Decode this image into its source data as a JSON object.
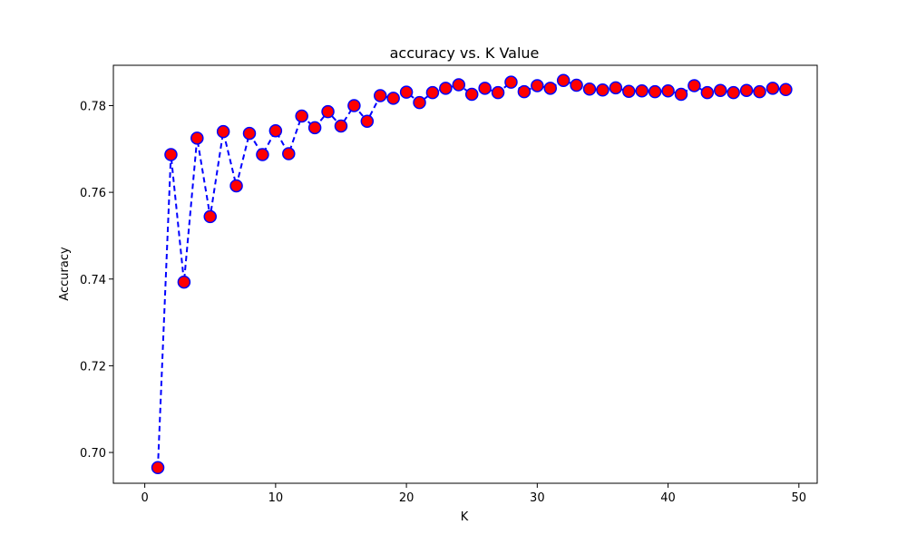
{
  "chart_data": {
    "type": "line",
    "title": "accuracy vs. K Value",
    "xlabel": "K",
    "ylabel": "Accuracy",
    "xlim": [
      -2.4,
      51.4
    ],
    "ylim": [
      0.6929,
      0.7893
    ],
    "xticks": [
      "0",
      "10",
      "20",
      "30",
      "40",
      "50"
    ],
    "yticks": [
      "0.70",
      "0.72",
      "0.74",
      "0.76",
      "0.78"
    ],
    "grid": false,
    "legend": "none",
    "series": [
      {
        "line_color": "#0000ff",
        "line_style": "dashed",
        "marker": "circle",
        "marker_face_color": "#ff0000",
        "marker_edge_color": "#0000ff",
        "x": [
          1,
          2,
          3,
          4,
          5,
          6,
          7,
          8,
          9,
          10,
          11,
          12,
          13,
          14,
          15,
          16,
          17,
          18,
          19,
          20,
          21,
          22,
          23,
          24,
          25,
          26,
          27,
          28,
          29,
          30,
          31,
          32,
          33,
          34,
          35,
          36,
          37,
          38,
          39,
          40,
          41,
          42,
          43,
          44,
          45,
          46,
          47,
          48,
          49
        ],
        "values": [
          0.6965,
          0.7687,
          0.7393,
          0.7725,
          0.7544,
          0.774,
          0.7615,
          0.7736,
          0.7687,
          0.7742,
          0.7689,
          0.7776,
          0.7749,
          0.7786,
          0.7753,
          0.78,
          0.7764,
          0.7823,
          0.7817,
          0.7831,
          0.7807,
          0.783,
          0.784,
          0.7848,
          0.7826,
          0.784,
          0.783,
          0.7854,
          0.7832,
          0.7846,
          0.784,
          0.7858,
          0.7847,
          0.7838,
          0.7836,
          0.7841,
          0.7833,
          0.7834,
          0.7832,
          0.7834,
          0.7826,
          0.7846,
          0.783,
          0.7835,
          0.783,
          0.7835,
          0.7832,
          0.784,
          0.7837
        ]
      }
    ]
  }
}
